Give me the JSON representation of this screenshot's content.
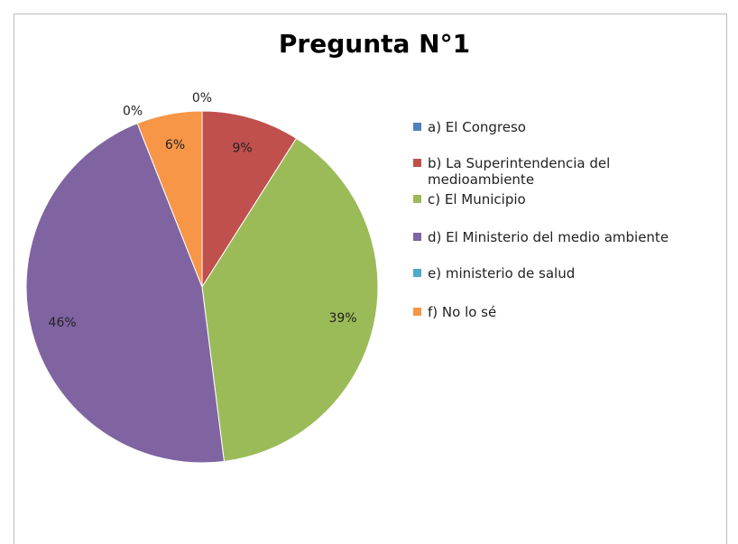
{
  "chart_data": {
    "type": "pie",
    "title": "Pregunta N°1",
    "categories": [
      "a) El Congreso",
      "b) La Superintendencia del medioambiente",
      "c) El Municipio",
      "d) El Ministerio del  medio ambiente",
      "e) ministerio de salud",
      "f)  No lo sé"
    ],
    "values": [
      0,
      9,
      39,
      46,
      0,
      6
    ],
    "value_labels": [
      "0%",
      "9%",
      "39%",
      "46%",
      "0%",
      "6%"
    ],
    "colors": [
      "#4f81bd",
      "#c0504d",
      "#9bbb59",
      "#8064a2",
      "#4bacc6",
      "#f79646"
    ],
    "legend": "right"
  }
}
